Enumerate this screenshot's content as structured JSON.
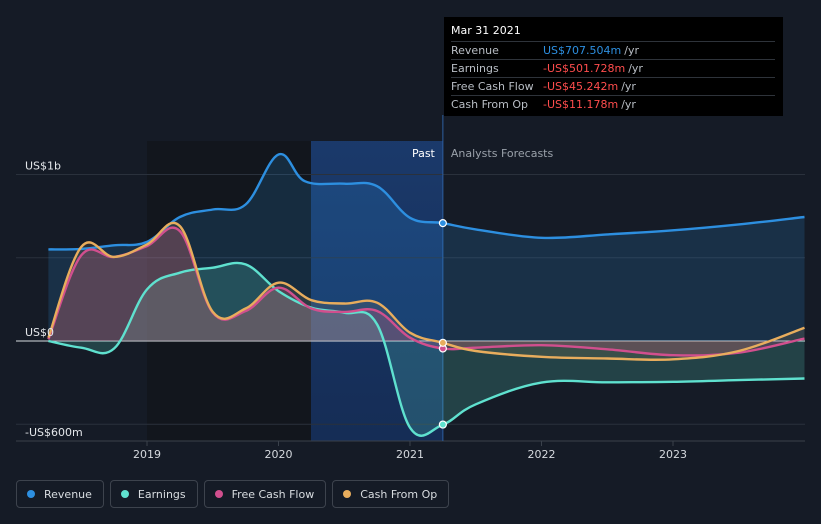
{
  "chart_data": {
    "type": "line",
    "y_axis": {
      "ylim": [
        -600,
        1000
      ],
      "labels": [
        "US$1b",
        "US$0",
        "-US$600m"
      ]
    },
    "x_axis": {
      "tick_labels": [
        "2019",
        "2020",
        "2021",
        "2022",
        "2023"
      ]
    },
    "regions": {
      "past": "Past",
      "forecast": "Analysts Forecasts"
    },
    "highlight_date": "Mar 31 2021",
    "series": [
      {
        "name": "Revenue",
        "color": "#2d8fe0",
        "points": [
          [
            2018.25,
            550
          ],
          [
            2018.5,
            553
          ],
          [
            2018.75,
            575
          ],
          [
            2019.0,
            595
          ],
          [
            2019.25,
            745
          ],
          [
            2019.5,
            790
          ],
          [
            2019.75,
            820
          ],
          [
            2020.0,
            1120
          ],
          [
            2020.2,
            960
          ],
          [
            2020.5,
            945
          ],
          [
            2020.75,
            930
          ],
          [
            2021.0,
            740
          ],
          [
            2021.25,
            708
          ],
          [
            2021.5,
            670
          ],
          [
            2022.0,
            620
          ],
          [
            2022.5,
            640
          ],
          [
            2023.0,
            665
          ],
          [
            2023.5,
            700
          ],
          [
            2024.0,
            745
          ]
        ]
      },
      {
        "name": "Earnings",
        "color": "#5fe1cf",
        "points": [
          [
            2018.25,
            0
          ],
          [
            2018.5,
            -40
          ],
          [
            2018.75,
            -45
          ],
          [
            2019.0,
            310
          ],
          [
            2019.25,
            410
          ],
          [
            2019.5,
            440
          ],
          [
            2019.75,
            460
          ],
          [
            2020.0,
            300
          ],
          [
            2020.25,
            200
          ],
          [
            2020.5,
            170
          ],
          [
            2020.75,
            100
          ],
          [
            2021.0,
            -520
          ],
          [
            2021.25,
            -502
          ],
          [
            2021.5,
            -380
          ],
          [
            2022.0,
            -250
          ],
          [
            2022.5,
            -248
          ],
          [
            2023.0,
            -245
          ],
          [
            2023.5,
            -235
          ],
          [
            2024.0,
            -225
          ]
        ]
      },
      {
        "name": "Free Cash Flow",
        "color": "#d14f8e",
        "points": [
          [
            2018.25,
            10
          ],
          [
            2018.5,
            515
          ],
          [
            2018.75,
            505
          ],
          [
            2019.0,
            570
          ],
          [
            2019.25,
            660
          ],
          [
            2019.5,
            170
          ],
          [
            2019.75,
            180
          ],
          [
            2020.0,
            320
          ],
          [
            2020.25,
            195
          ],
          [
            2020.5,
            175
          ],
          [
            2020.75,
            180
          ],
          [
            2021.0,
            20
          ],
          [
            2021.25,
            -45
          ],
          [
            2021.5,
            -40
          ],
          [
            2022.0,
            -25
          ],
          [
            2022.5,
            -50
          ],
          [
            2023.0,
            -85
          ],
          [
            2023.5,
            -70
          ],
          [
            2024.0,
            15
          ]
        ]
      },
      {
        "name": "Cash From Op",
        "color": "#e8ad5d",
        "points": [
          [
            2018.25,
            20
          ],
          [
            2018.5,
            565
          ],
          [
            2018.75,
            505
          ],
          [
            2019.0,
            580
          ],
          [
            2019.25,
            690
          ],
          [
            2019.5,
            175
          ],
          [
            2019.75,
            195
          ],
          [
            2020.0,
            350
          ],
          [
            2020.25,
            245
          ],
          [
            2020.5,
            225
          ],
          [
            2020.75,
            230
          ],
          [
            2021.0,
            50
          ],
          [
            2021.25,
            -11
          ],
          [
            2021.5,
            -60
          ],
          [
            2022.0,
            -95
          ],
          [
            2022.5,
            -105
          ],
          [
            2023.0,
            -110
          ],
          [
            2023.5,
            -60
          ],
          [
            2024.0,
            80
          ]
        ]
      }
    ]
  },
  "tooltip": {
    "date": "Mar 31 2021",
    "rows": [
      {
        "label": "Revenue",
        "value": "US$707.504m",
        "unit": "/yr",
        "color": "#2d8fe0"
      },
      {
        "label": "Earnings",
        "value": "-US$501.728m",
        "unit": "/yr",
        "color": "#ff4d4d"
      },
      {
        "label": "Free Cash Flow",
        "value": "-US$45.242m",
        "unit": "/yr",
        "color": "#ff4d4d"
      },
      {
        "label": "Cash From Op",
        "value": "-US$11.178m",
        "unit": "/yr",
        "color": "#ff4d4d"
      }
    ]
  },
  "legend": [
    {
      "label": "Revenue",
      "color": "#2d8fe0"
    },
    {
      "label": "Earnings",
      "color": "#5fe1cf"
    },
    {
      "label": "Free Cash Flow",
      "color": "#d14f8e"
    },
    {
      "label": "Cash From Op",
      "color": "#e8ad5d"
    }
  ]
}
